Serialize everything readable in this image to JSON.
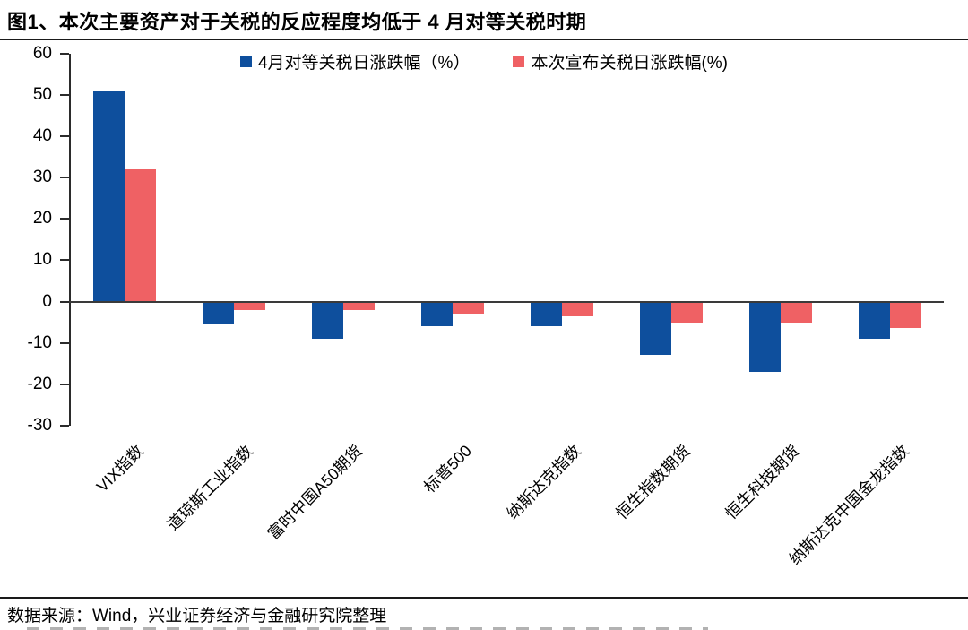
{
  "header": {
    "title": "图1、本次主要资产对于关税的反应程度均低于 4 月对等关税时期"
  },
  "footer": {
    "source_text": "数据来源：Wind，兴业证券经济与金融研究院整理"
  },
  "colors": {
    "april_series": "#0E4F9D",
    "current_series": "#EF6164",
    "axis": "#2b2b2b",
    "text": "#000000"
  },
  "chart_data": {
    "type": "bar",
    "title": "",
    "xlabel": "",
    "ylabel": "",
    "categories": [
      "VIX指数",
      "道琼斯工业指数",
      "富时中国A50期货",
      "标普500",
      "纳斯达克指数",
      "恒生指数期货",
      "恒生科技期货",
      "纳斯达克中国金龙指数"
    ],
    "series": [
      {
        "name": "4月对等关税日涨跌幅（%）",
        "color": "#0E4F9D",
        "values": [
          51,
          -5.5,
          -9,
          -6,
          -6,
          -13,
          -17,
          -9
        ]
      },
      {
        "name": "本次宣布关税日涨跌幅(%)",
        "color": "#EF6164",
        "values": [
          32,
          -2,
          -2,
          -3,
          -3.5,
          -5,
          -5,
          -6.5
        ]
      }
    ],
    "ylim": [
      -30,
      60
    ],
    "yticks": [
      60,
      50,
      40,
      30,
      20,
      10,
      0,
      -10,
      -20,
      -30
    ],
    "grid": false,
    "legend_position": "top",
    "x_label_rotation_deg": 45
  }
}
